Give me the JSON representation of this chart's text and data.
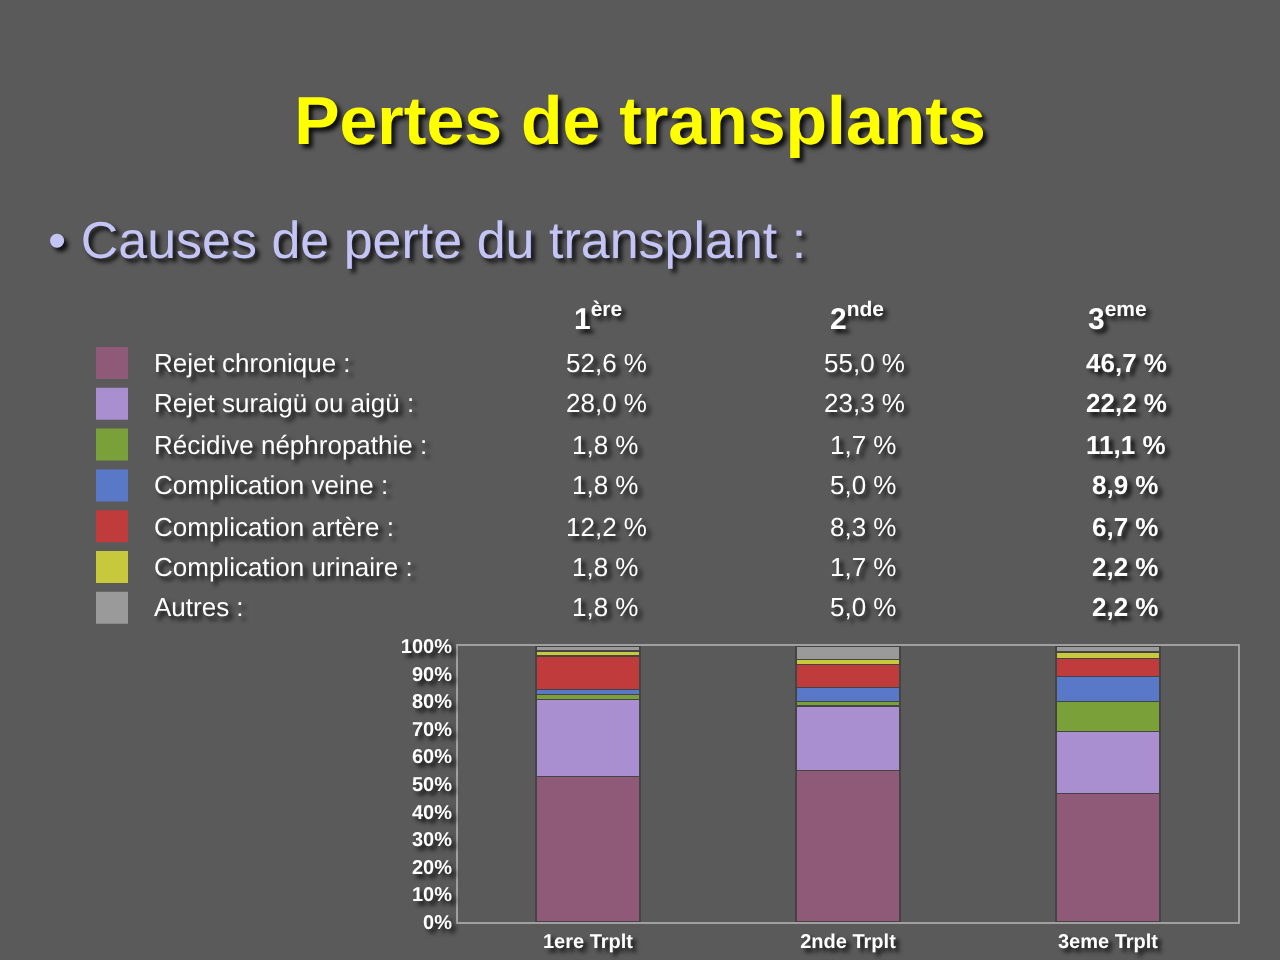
{
  "chart_data": {
    "type": "bar",
    "stacked": true,
    "title": "Pertes de transplants",
    "subtitle": "• Causes de perte du transplant :",
    "categories": [
      "1ere Trplt",
      "2nde Trplt",
      "3eme Trplt"
    ],
    "series": [
      {
        "name": "Rejet chronique :",
        "color": "#8e5a78",
        "values": [
          52.6,
          55.0,
          46.7
        ],
        "value_labels": [
          "52,6 %",
          "55,0 %",
          "46,7 %"
        ]
      },
      {
        "name": "Rejet suraigü ou aigü :",
        "color": "#a98fd0",
        "values": [
          28.0,
          23.3,
          22.2
        ],
        "value_labels": [
          "28,0 %",
          "23,3 %",
          "22,2 %"
        ]
      },
      {
        "name": "Récidive néphropathie :",
        "color": "#7aa03a",
        "values": [
          1.8,
          1.7,
          11.1
        ],
        "value_labels": [
          "1,8 %",
          "1,7 %",
          "11,1 %"
        ]
      },
      {
        "name": "Complication veine :",
        "color": "#5a78c8",
        "values": [
          1.8,
          5.0,
          8.9
        ],
        "value_labels": [
          "1,8 %",
          "5,0 %",
          "8,9 %"
        ]
      },
      {
        "name": "Complication artère :",
        "color": "#c03c3c",
        "values": [
          12.2,
          8.3,
          6.7
        ],
        "value_labels": [
          "12,2 %",
          "8,3 %",
          "6,7 %"
        ]
      },
      {
        "name": "Complication urinaire :",
        "color": "#c8c83c",
        "values": [
          1.8,
          1.7,
          2.2
        ],
        "value_labels": [
          "1,8 %",
          "1,7 %",
          "2,2 %"
        ]
      },
      {
        "name": "Autres :",
        "color": "#9a9a9a",
        "values": [
          1.8,
          5.0,
          2.2
        ],
        "value_labels": [
          "1,8 %",
          "5,0 %",
          "2,2 %"
        ]
      }
    ],
    "ylim": [
      0,
      100
    ],
    "yticks": [
      {
        "value": 0,
        "label": "0%"
      },
      {
        "value": 10,
        "label": "10%"
      },
      {
        "value": 20,
        "label": "20%"
      },
      {
        "value": 30,
        "label": "30%"
      },
      {
        "value": 40,
        "label": "40%"
      },
      {
        "value": 50,
        "label": "50%"
      },
      {
        "value": 60,
        "label": "60%"
      },
      {
        "value": 70,
        "label": "70%"
      },
      {
        "value": 80,
        "label": "80%"
      },
      {
        "value": 90,
        "label": "90%"
      },
      {
        "value": 100,
        "label": "100%"
      }
    ],
    "grid": false,
    "legend": "top",
    "annotations": [
      "1$^{ère}$",
      "2$^{nde}$",
      "3$^{eme}$"
    ]
  }
}
